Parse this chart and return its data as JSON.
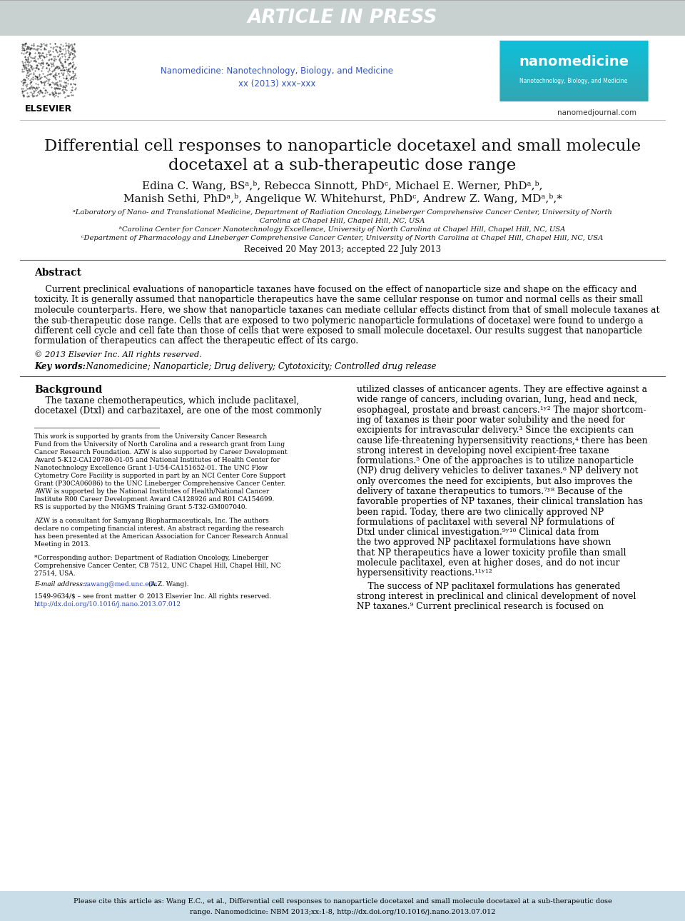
{
  "header_bg_color": "#c8d0d0",
  "header_text": "ARTICLE IN PRESS",
  "header_text_color": "#ffffff",
  "journal_name_color": "#3355bb",
  "journal_name": "Nanomedicine: Nanotechnology, Biology, and Medicine",
  "journal_issue": "xx (2013) xxx–xxx",
  "nanomedjournal": "nanomedjournal.com",
  "title_line1": "Differential cell responses to nanoparticle docetaxel and small molecule",
  "title_line2": "docetaxel at a sub-therapeutic dose range",
  "received": "Received 20 May 2013; accepted 22 July 2013",
  "abstract_title": "Abstract",
  "copyright": "© 2013 Elsevier Inc. All rights reserved.",
  "keywords_label": "Key words:",
  "keywords": "Nanomedicine; Nanoparticle; Drug delivery; Cytotoxicity; Controlled drug release",
  "bg_section_title": "Background",
  "page_bg": "#ffffff",
  "line_color": "#555555",
  "footer_bg": "#c8dde8",
  "logo_colors": [
    "#29c4e8",
    "#20b8e0",
    "#18a8d0",
    "#15a0c8",
    "#1298c0",
    "#1090b8",
    "#0e88b0",
    "#0c80a8"
  ],
  "logo_text1": "nanomedicine",
  "logo_text2": "Nanotechnology, Biology, and Medicine"
}
